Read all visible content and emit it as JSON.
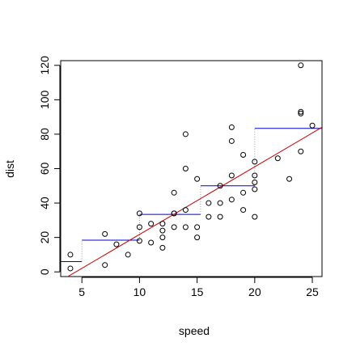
{
  "chart_data": {
    "type": "scatter",
    "title": "",
    "xlabel": "speed",
    "ylabel": "dist",
    "xlim": [
      3.16,
      25.84
    ],
    "ylim": [
      -2.72,
      122.72
    ],
    "xticks": [
      5,
      10,
      15,
      20,
      25
    ],
    "yticks": [
      0,
      20,
      40,
      60,
      80,
      100,
      120
    ],
    "grid": false,
    "colors": {
      "points": "#000000",
      "regression": "#cc0000",
      "step": "#0000cc",
      "step_drop": "#999999"
    },
    "points": {
      "x": [
        4,
        4,
        7,
        7,
        8,
        9,
        10,
        10,
        10,
        11,
        11,
        12,
        12,
        12,
        12,
        13,
        13,
        13,
        13,
        14,
        14,
        14,
        14,
        15,
        15,
        15,
        16,
        16,
        17,
        17,
        17,
        18,
        18,
        18,
        18,
        19,
        19,
        19,
        20,
        20,
        20,
        20,
        20,
        22,
        23,
        24,
        24,
        24,
        24,
        25
      ],
      "y": [
        2,
        10,
        4,
        22,
        16,
        10,
        18,
        26,
        34,
        17,
        28,
        14,
        20,
        24,
        28,
        26,
        34,
        34,
        46,
        26,
        36,
        60,
        80,
        20,
        26,
        54,
        32,
        40,
        32,
        40,
        50,
        42,
        56,
        76,
        84,
        36,
        46,
        68,
        32,
        48,
        52,
        56,
        64,
        66,
        54,
        70,
        92,
        93,
        120,
        85
      ]
    },
    "regression": {
      "intercept": -17.579,
      "slope": 3.932
    },
    "step_segments": [
      {
        "x0": 3.16,
        "x1": 5.0,
        "y": 6.0
      },
      {
        "x0": 5.0,
        "x1": 10.0,
        "y": 18.4
      },
      {
        "x0": 10.0,
        "x1": 15.3,
        "y": 33.4
      },
      {
        "x0": 15.3,
        "x1": 20.0,
        "y": 50.0
      },
      {
        "x0": 20.0,
        "x1": 25.84,
        "y": 83.4
      }
    ]
  }
}
